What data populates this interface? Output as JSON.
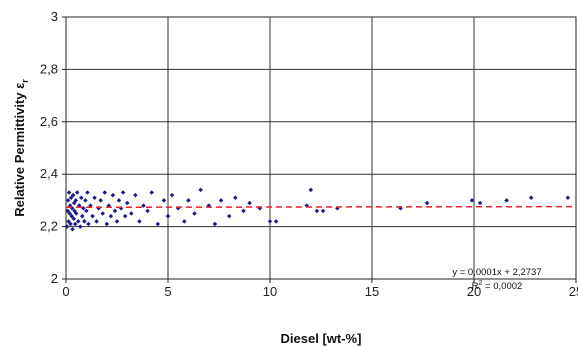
{
  "chart_data": {
    "type": "scatter",
    "title": "",
    "xlabel": "Diesel [wt-%]",
    "ylabel": "Relative Permittivity ε",
    "ylabel_subscript": "r",
    "xlim": [
      0,
      25
    ],
    "ylim": [
      2,
      3
    ],
    "xticks": [
      "0",
      "5",
      "10",
      "15",
      "20",
      "25"
    ],
    "yticks": [
      "2",
      "2,2",
      "2,4",
      "2,6",
      "2,8",
      "3"
    ],
    "grid": true,
    "legend": "none",
    "marker_color": "#1a1a8c",
    "trendline_color": "#e8202a",
    "trendline": {
      "equation": "y = 0,0001x + 2,2737",
      "r_squared_label": "R",
      "r_squared_exp": "2",
      "r_squared_value": " = 0,0002",
      "slope": 0.0001,
      "intercept": 2.2737
    },
    "series": [
      {
        "points": [
          [
            0.05,
            2.2
          ],
          [
            0.08,
            2.26
          ],
          [
            0.1,
            2.3
          ],
          [
            0.12,
            2.22
          ],
          [
            0.15,
            2.33
          ],
          [
            0.18,
            2.25
          ],
          [
            0.2,
            2.28
          ],
          [
            0.22,
            2.21
          ],
          [
            0.25,
            2.31
          ],
          [
            0.28,
            2.24
          ],
          [
            0.3,
            2.27
          ],
          [
            0.32,
            2.19
          ],
          [
            0.35,
            2.32
          ],
          [
            0.38,
            2.23
          ],
          [
            0.4,
            2.29
          ],
          [
            0.42,
            2.26
          ],
          [
            0.45,
            2.21
          ],
          [
            0.48,
            2.3
          ],
          [
            0.5,
            2.25
          ],
          [
            0.55,
            2.33
          ],
          [
            0.6,
            2.22
          ],
          [
            0.65,
            2.28
          ],
          [
            0.7,
            2.2
          ],
          [
            0.75,
            2.31
          ],
          [
            0.8,
            2.24
          ],
          [
            0.85,
            2.27
          ],
          [
            0.9,
            2.22
          ],
          [
            0.95,
            2.3
          ],
          [
            1.0,
            2.26
          ],
          [
            1.05,
            2.33
          ],
          [
            1.1,
            2.21
          ],
          [
            1.2,
            2.28
          ],
          [
            1.3,
            2.24
          ],
          [
            1.4,
            2.31
          ],
          [
            1.5,
            2.22
          ],
          [
            1.6,
            2.27
          ],
          [
            1.7,
            2.3
          ],
          [
            1.8,
            2.25
          ],
          [
            1.9,
            2.33
          ],
          [
            2.0,
            2.21
          ],
          [
            2.1,
            2.28
          ],
          [
            2.2,
            2.24
          ],
          [
            2.3,
            2.32
          ],
          [
            2.4,
            2.26
          ],
          [
            2.5,
            2.22
          ],
          [
            2.6,
            2.3
          ],
          [
            2.7,
            2.27
          ],
          [
            2.8,
            2.33
          ],
          [
            2.9,
            2.24
          ],
          [
            3.0,
            2.29
          ],
          [
            3.2,
            2.25
          ],
          [
            3.4,
            2.32
          ],
          [
            3.6,
            2.22
          ],
          [
            3.8,
            2.28
          ],
          [
            4.0,
            2.26
          ],
          [
            4.2,
            2.33
          ],
          [
            4.5,
            2.21
          ],
          [
            4.8,
            2.3
          ],
          [
            5.0,
            2.24
          ],
          [
            5.2,
            2.32
          ],
          [
            5.5,
            2.27
          ],
          [
            5.8,
            2.22
          ],
          [
            6.0,
            2.3
          ],
          [
            6.3,
            2.25
          ],
          [
            6.6,
            2.34
          ],
          [
            7.0,
            2.28
          ],
          [
            7.3,
            2.21
          ],
          [
            7.6,
            2.3
          ],
          [
            8.0,
            2.24
          ],
          [
            8.3,
            2.31
          ],
          [
            8.7,
            2.26
          ],
          [
            9.0,
            2.29
          ],
          [
            9.5,
            2.27
          ],
          [
            10.0,
            2.22
          ],
          [
            10.3,
            2.22
          ],
          [
            11.8,
            2.28
          ],
          [
            12.0,
            2.34
          ],
          [
            12.3,
            2.26
          ],
          [
            12.6,
            2.26
          ],
          [
            13.3,
            2.27
          ],
          [
            16.4,
            2.27
          ],
          [
            17.7,
            2.29
          ],
          [
            19.9,
            2.3
          ],
          [
            20.3,
            2.29
          ],
          [
            21.6,
            2.3
          ],
          [
            22.8,
            2.31
          ],
          [
            24.6,
            2.31
          ]
        ]
      }
    ]
  }
}
